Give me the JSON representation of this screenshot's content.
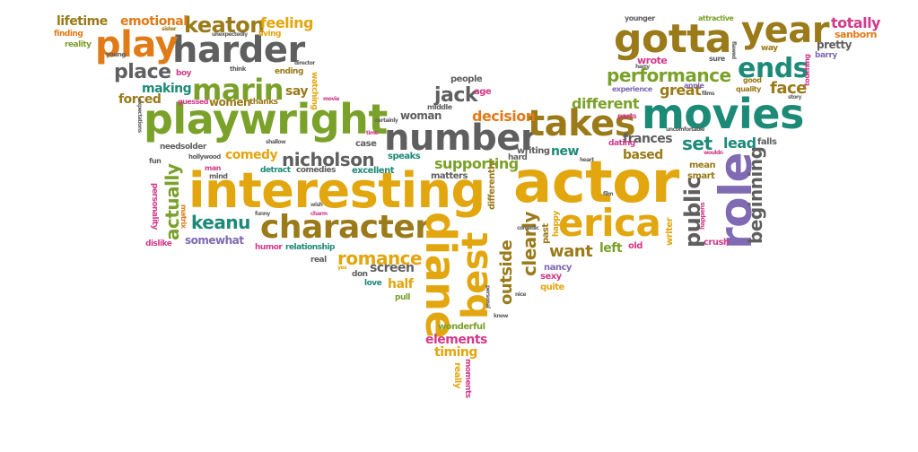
{
  "palette": {
    "orange": "#e07b18",
    "gold": "#e2a60e",
    "olive": "#9a7a19",
    "green": "#7aa12a",
    "teal": "#1d8a78",
    "grey": "#5f5f5f",
    "purple": "#7f6ab3",
    "pink": "#d23a8a"
  },
  "words": [
    {
      "key": "interesting",
      "text": "interesting"
    },
    {
      "key": "actor",
      "text": "actor"
    },
    {
      "key": "playwright",
      "text": "playwright"
    },
    {
      "key": "number",
      "text": "number"
    },
    {
      "key": "character",
      "text": "character"
    },
    {
      "key": "gotta",
      "text": "gotta"
    },
    {
      "key": "movies",
      "text": "movies"
    },
    {
      "key": "year",
      "text": "year"
    },
    {
      "key": "harder",
      "text": "harder"
    },
    {
      "key": "erica",
      "text": "erica"
    },
    {
      "key": "takes",
      "text": "takes"
    },
    {
      "key": "marin",
      "text": "marin"
    },
    {
      "key": "play",
      "text": "play"
    },
    {
      "key": "role",
      "text": "role"
    },
    {
      "key": "diane",
      "text": "diane"
    },
    {
      "key": "best",
      "text": "best"
    },
    {
      "key": "ends",
      "text": "ends"
    },
    {
      "key": "keaton",
      "text": "keaton"
    },
    {
      "key": "performance",
      "text": "performance"
    },
    {
      "key": "nicholson",
      "text": "nicholson"
    },
    {
      "key": "place",
      "text": "place"
    },
    {
      "key": "keanu",
      "text": "keanu"
    },
    {
      "key": "jack",
      "text": "jack"
    },
    {
      "key": "actually",
      "text": "actually"
    },
    {
      "key": "romance",
      "text": "romance"
    },
    {
      "key": "want",
      "text": "want"
    },
    {
      "key": "public",
      "text": "public"
    },
    {
      "key": "beginning",
      "text": "beginning"
    },
    {
      "key": "clearly",
      "text": "clearly"
    },
    {
      "key": "outside",
      "text": "outside"
    },
    {
      "key": "face",
      "text": "face"
    },
    {
      "key": "set",
      "text": "set"
    },
    {
      "key": "decision",
      "text": "decision"
    },
    {
      "key": "supporting",
      "text": "supporting"
    },
    {
      "key": "great",
      "text": "great"
    },
    {
      "key": "different",
      "text": "different"
    },
    {
      "key": "lead",
      "text": "lead"
    },
    {
      "key": "totally",
      "text": "totally"
    },
    {
      "key": "lifetime",
      "text": "lifetime"
    },
    {
      "key": "emotional",
      "text": "emotional"
    },
    {
      "key": "feeling",
      "text": "feeling"
    },
    {
      "key": "making",
      "text": "making"
    },
    {
      "key": "forced",
      "text": "forced"
    },
    {
      "key": "say",
      "text": "say"
    },
    {
      "key": "elements",
      "text": "elements"
    },
    {
      "key": "timing",
      "text": "timing"
    },
    {
      "key": "screen",
      "text": "screen"
    },
    {
      "key": "half",
      "text": "half"
    },
    {
      "key": "woman",
      "text": "woman"
    },
    {
      "key": "comedy",
      "text": "comedy"
    },
    {
      "key": "based",
      "text": "based"
    },
    {
      "key": "frances",
      "text": "frances"
    },
    {
      "key": "somewhat",
      "text": "somewhat"
    },
    {
      "key": "new",
      "text": "new"
    },
    {
      "key": "women",
      "text": "women"
    },
    {
      "key": "left",
      "text": "left"
    },
    {
      "key": "pretty",
      "text": "pretty"
    },
    {
      "key": "sanborn",
      "text": "sanborn"
    },
    {
      "key": "wrote",
      "text": "wrote"
    },
    {
      "key": "nancy",
      "text": "nancy"
    },
    {
      "key": "wonderful",
      "text": "wonderful"
    },
    {
      "key": "excellent",
      "text": "excellent"
    },
    {
      "key": "speaks",
      "text": "speaks"
    },
    {
      "key": "matters",
      "text": "matters"
    },
    {
      "key": "people",
      "text": "people"
    },
    {
      "key": "age",
      "text": "age"
    },
    {
      "key": "middle",
      "text": "middle"
    },
    {
      "key": "case",
      "text": "case"
    },
    {
      "key": "writing",
      "text": "writing"
    },
    {
      "key": "hard",
      "text": "hard"
    },
    {
      "key": "dating",
      "text": "dating"
    },
    {
      "key": "mean",
      "text": "mean"
    },
    {
      "key": "smart",
      "text": "smart"
    },
    {
      "key": "writer",
      "text": "writer"
    },
    {
      "key": "crush",
      "text": "crush"
    },
    {
      "key": "falls",
      "text": "falls"
    },
    {
      "key": "old",
      "text": "old"
    },
    {
      "key": "happy",
      "text": "happy"
    },
    {
      "key": "past",
      "text": "past"
    },
    {
      "key": "differently",
      "text": "differently"
    },
    {
      "key": "quite",
      "text": "quite"
    },
    {
      "key": "sexy",
      "text": "sexy"
    },
    {
      "key": "pull",
      "text": "pull"
    },
    {
      "key": "don",
      "text": "don"
    },
    {
      "key": "love",
      "text": "love"
    },
    {
      "key": "really",
      "text": "really"
    },
    {
      "key": "moments",
      "text": "moments"
    },
    {
      "key": "humor",
      "text": "humor"
    },
    {
      "key": "relationship",
      "text": "relationship"
    },
    {
      "key": "real",
      "text": "real"
    },
    {
      "key": "comedies",
      "text": "comedies"
    },
    {
      "key": "detract",
      "text": "detract"
    },
    {
      "key": "dislike",
      "text": "dislike"
    },
    {
      "key": "personality",
      "text": "personality"
    },
    {
      "key": "matrix",
      "text": "matrix"
    },
    {
      "key": "needs",
      "text": "needs"
    },
    {
      "key": "older",
      "text": "older"
    },
    {
      "key": "fun",
      "text": "fun"
    },
    {
      "key": "man",
      "text": "man"
    },
    {
      "key": "mind",
      "text": "mind"
    },
    {
      "key": "hollywood",
      "text": "hollywood"
    },
    {
      "key": "finding",
      "text": "finding"
    },
    {
      "key": "reality",
      "text": "reality"
    },
    {
      "key": "sister",
      "text": "sister"
    },
    {
      "key": "living",
      "text": "living"
    },
    {
      "key": "unexpectedly",
      "text": "unexpectedly"
    },
    {
      "key": "young",
      "text": "young"
    },
    {
      "key": "boy",
      "text": "boy"
    },
    {
      "key": "guessed",
      "text": "guessed"
    },
    {
      "key": "thanks",
      "text": "thanks"
    },
    {
      "key": "think",
      "text": "think"
    },
    {
      "key": "ending",
      "text": "ending"
    },
    {
      "key": "director",
      "text": "director"
    },
    {
      "key": "watching",
      "text": "watching"
    },
    {
      "key": "movie",
      "text": "movie"
    },
    {
      "key": "younger",
      "text": "younger"
    },
    {
      "key": "attractive",
      "text": "attractive"
    },
    {
      "key": "way",
      "text": "way"
    },
    {
      "key": "barry",
      "text": "barry"
    },
    {
      "key": "sure",
      "text": "sure"
    },
    {
      "key": "harry",
      "text": "harry"
    },
    {
      "key": "annie",
      "text": "annie"
    },
    {
      "key": "good",
      "text": "good"
    },
    {
      "key": "quality",
      "text": "quality"
    },
    {
      "key": "experience",
      "text": "experience"
    },
    {
      "key": "parts",
      "text": "parts"
    },
    {
      "key": "uncomfortable",
      "text": "uncomfortable"
    },
    {
      "key": "wouldn",
      "text": "wouldn"
    },
    {
      "key": "happens",
      "text": "happens"
    },
    {
      "key": "touching",
      "text": "touching"
    },
    {
      "key": "story",
      "text": "story"
    },
    {
      "key": "certainly",
      "text": "certainly"
    },
    {
      "key": "shallow",
      "text": "shallow"
    },
    {
      "key": "time",
      "text": "time"
    },
    {
      "key": "wish",
      "text": "wish"
    },
    {
      "key": "charm",
      "text": "charm"
    },
    {
      "key": "comedic",
      "text": "comedic"
    },
    {
      "key": "expectations",
      "text": "expectations"
    },
    {
      "key": "films",
      "text": "films"
    },
    {
      "key": "flawed",
      "text": "flawed"
    },
    {
      "key": "know",
      "text": "know"
    },
    {
      "key": "nice",
      "text": "nice"
    },
    {
      "key": "personal",
      "text": "personal"
    },
    {
      "key": "funny",
      "text": "funny"
    },
    {
      "key": "heart",
      "text": "heart"
    },
    {
      "key": "film",
      "text": "film"
    },
    {
      "key": "yes",
      "text": "yes"
    }
  ]
}
